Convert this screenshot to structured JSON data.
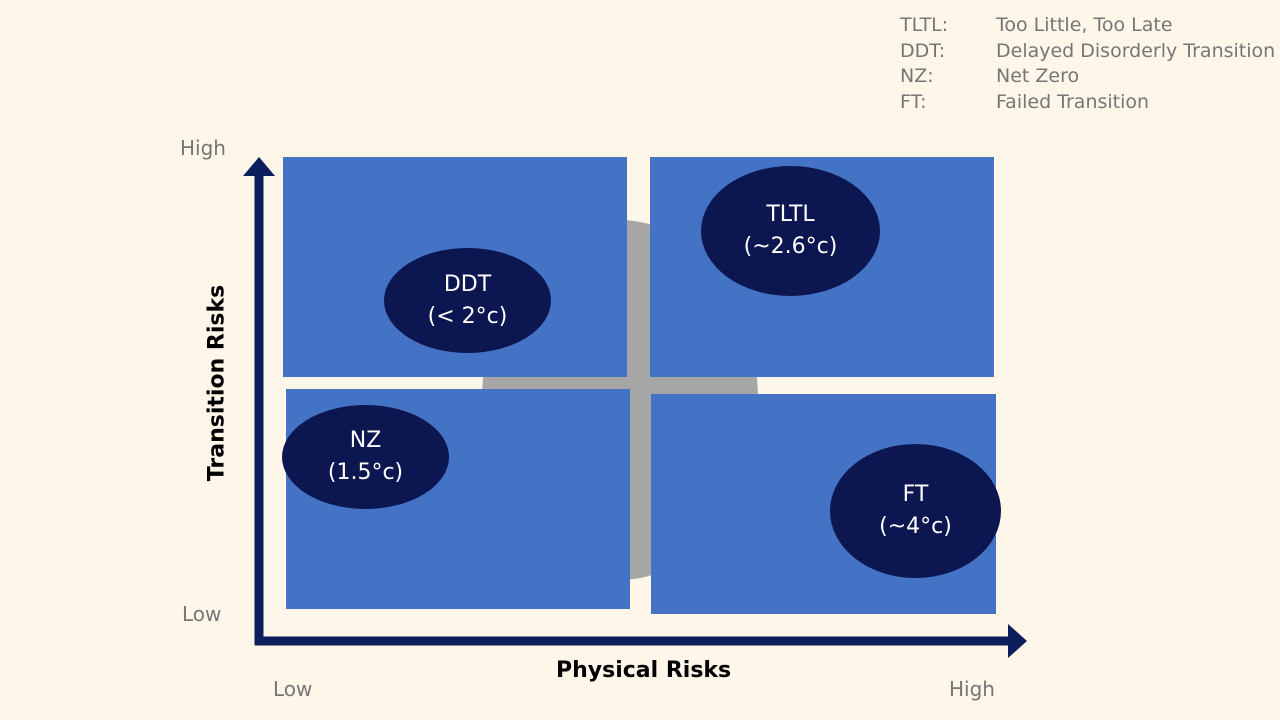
{
  "legend": [
    {
      "abbr": "TLTL:",
      "full": "Too Little, Too Late"
    },
    {
      "abbr": "DDT:",
      "full": "Delayed Disorderly Transition"
    },
    {
      "abbr": "NZ:",
      "full": "Net Zero"
    },
    {
      "abbr": "FT:",
      "full": "Failed Transition"
    }
  ],
  "y_axis": {
    "title": "Transition Risks",
    "high": "High",
    "low": "Low"
  },
  "x_axis": {
    "title": "Physical Risks",
    "low": "Low",
    "high": "High"
  },
  "scenarios": {
    "ddt": {
      "name": "DDT",
      "temp": "(< 2°c)"
    },
    "tltl": {
      "name": "TLTL",
      "temp": "(~2.6°c)"
    },
    "nz": {
      "name": "NZ",
      "temp": "(1.5°c)"
    },
    "ft": {
      "name": "FT",
      "temp": "(~4°c)"
    }
  },
  "colors": {
    "background": "#fdf6e9",
    "quadrant": "#4472c4",
    "ellipse": "#0c1650",
    "axis": "#0c1f5c",
    "center_circle": "#a6a6a6"
  }
}
